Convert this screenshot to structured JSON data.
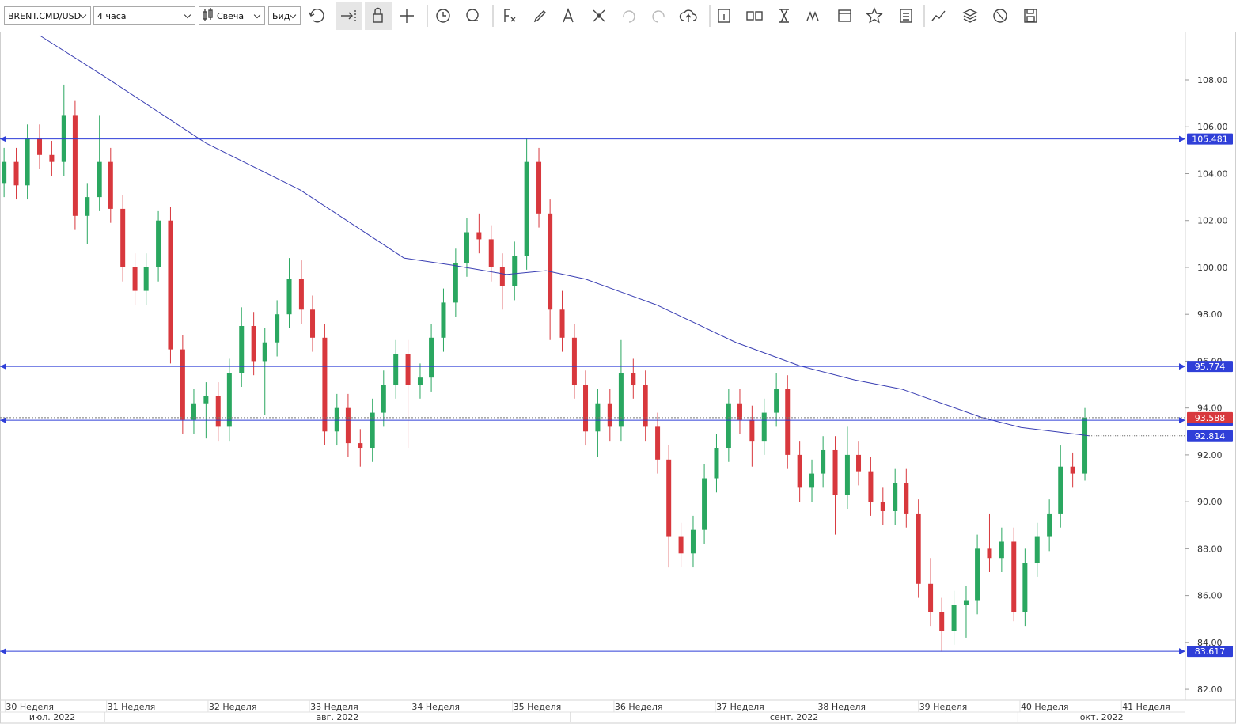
{
  "toolbar": {
    "symbol": "BRENT.CMD/USD",
    "timeframe": "4 часа",
    "chart_style": "Свеча",
    "price_side": "Бид"
  },
  "chart_data": {
    "type": "candlestick",
    "x": [
      29.99,
      30.11,
      30.22,
      30.34,
      30.46,
      30.58,
      30.69,
      30.81,
      30.93,
      31.04,
      31.16,
      31.28,
      31.39,
      31.51,
      31.63,
      31.75,
      31.86,
      31.98,
      32.1,
      32.21,
      32.33,
      32.45,
      32.56,
      32.68,
      32.8,
      32.92,
      33.03,
      33.15,
      33.27,
      33.38,
      33.5,
      33.62,
      33.73,
      33.85,
      33.97,
      34.09,
      34.2,
      34.32,
      34.44,
      34.55,
      34.67,
      34.79,
      34.9,
      35.02,
      35.14,
      35.26,
      35.37,
      35.49,
      35.61,
      35.72,
      35.84,
      35.96,
      36.07,
      36.19,
      36.31,
      36.43,
      36.54,
      36.66,
      36.78,
      36.89,
      37.01,
      37.13,
      37.24,
      37.36,
      37.48,
      37.6,
      37.71,
      37.83,
      37.95,
      38.06,
      38.18,
      38.3,
      38.41,
      38.53,
      38.65,
      38.77,
      38.88,
      39.0,
      39.12,
      39.23,
      39.35,
      39.47,
      39.58,
      39.7,
      39.82,
      39.94,
      40.05,
      40.17,
      40.29,
      40.4,
      40.52,
      40.64
    ],
    "open": [
      103.6,
      104.5,
      103.5,
      105.5,
      104.8,
      104.5,
      106.5,
      102.2,
      103,
      104.5,
      102.5,
      100,
      99,
      100,
      102,
      96.5,
      93.5,
      94.2,
      94.5,
      93.2,
      95.5,
      97.5,
      96,
      96.8,
      98,
      99.5,
      98.2,
      97,
      93,
      94,
      92.5,
      92.3,
      93.8,
      95,
      96.3,
      95,
      95.3,
      97,
      98.5,
      100.2,
      101.5,
      101.2,
      100,
      99.2,
      100.5,
      104.5,
      102.3,
      98.2,
      97,
      95,
      93,
      94.2,
      93.2,
      95.5,
      95,
      93.2,
      91.8,
      88.5,
      87.8,
      88.8,
      91,
      92.3,
      94.2,
      93.5,
      92.6,
      93.8,
      94.8,
      92,
      90.6,
      91.2,
      92.2,
      90.3,
      92,
      91.3,
      90,
      89.6,
      90.8,
      89.5,
      86.5,
      85.3,
      84.5,
      85.6,
      85.8,
      88,
      87.6,
      88.3,
      85.3,
      87.4,
      88.5,
      89.5,
      91.5,
      91.2
    ],
    "high": [
      105.1,
      105.1,
      106.1,
      106.1,
      105.4,
      107.8,
      107.1,
      103.6,
      106.5,
      105.1,
      103.1,
      100.6,
      100.6,
      102.4,
      102.6,
      97.1,
      94.8,
      95.1,
      95.1,
      96.1,
      98.3,
      98.1,
      97.4,
      98.6,
      100.4,
      100.3,
      98.8,
      97.6,
      94.6,
      94.6,
      93.1,
      94.4,
      95.6,
      96.9,
      96.9,
      95.9,
      97.6,
      99.1,
      100.8,
      102.1,
      102.3,
      101.8,
      100.6,
      101.1,
      105.5,
      105.1,
      102.9,
      99.0,
      97.6,
      95.6,
      94.8,
      94.8,
      96.9,
      96.1,
      95.6,
      93.8,
      92.4,
      89.1,
      89.4,
      91.6,
      92.9,
      94.8,
      94.8,
      94.1,
      94.4,
      95.5,
      95.4,
      92.6,
      91.8,
      92.8,
      92.8,
      93.2,
      92.6,
      91.9,
      90.6,
      91.4,
      91.4,
      90.1,
      87.6,
      85.9,
      86.2,
      86.4,
      88.6,
      89.5,
      88.9,
      88.9,
      88.0,
      89.1,
      90.1,
      92.4,
      92.1,
      94.0
    ],
    "low": [
      103.0,
      102.9,
      102.9,
      104.2,
      103.9,
      103.9,
      101.6,
      101.0,
      102.4,
      101.9,
      99.4,
      98.4,
      98.4,
      99.4,
      95.9,
      92.9,
      92.9,
      92.7,
      92.6,
      92.6,
      94.9,
      95.4,
      93.7,
      96.2,
      97.4,
      97.6,
      96.4,
      92.4,
      92.4,
      91.9,
      91.5,
      91.7,
      93.2,
      94.4,
      92.3,
      94.4,
      94.7,
      96.4,
      97.9,
      99.6,
      100.6,
      99.4,
      98.2,
      98.6,
      99.9,
      101.7,
      96.9,
      96.4,
      94.4,
      92.4,
      91.9,
      92.6,
      92.6,
      94.4,
      92.6,
      91.2,
      87.2,
      87.2,
      87.2,
      88.2,
      90.4,
      91.7,
      92.9,
      91.5,
      92.0,
      93.2,
      91.4,
      90.0,
      90.0,
      90.6,
      88.6,
      89.7,
      90.7,
      89.4,
      89.0,
      89.0,
      88.9,
      85.9,
      84.7,
      83.6,
      83.9,
      84.2,
      85.2,
      87.0,
      87.0,
      84.9,
      84.7,
      86.8,
      87.9,
      88.9,
      90.6,
      90.9
    ],
    "close": [
      104.5,
      103.5,
      105.5,
      104.8,
      104.5,
      106.5,
      102.2,
      103,
      104.5,
      102.5,
      100,
      99,
      100,
      102,
      96.5,
      93.5,
      94.2,
      94.5,
      93.2,
      95.5,
      97.5,
      96,
      96.8,
      98,
      99.5,
      98.2,
      97,
      93,
      94,
      92.5,
      92.3,
      93.8,
      95,
      96.3,
      95,
      95.3,
      97,
      98.5,
      100.2,
      101.5,
      101.2,
      100,
      99.2,
      100.5,
      104.5,
      102.3,
      98.2,
      97,
      95,
      93,
      94.2,
      93.2,
      95.5,
      95,
      93.2,
      91.8,
      88.5,
      87.8,
      88.8,
      91,
      92.3,
      94.2,
      93.5,
      92.6,
      93.8,
      94.8,
      92,
      90.6,
      91.2,
      92.2,
      90.3,
      92,
      91.3,
      90,
      89.6,
      90.8,
      89.5,
      86.5,
      85.3,
      84.5,
      85.6,
      85.8,
      88,
      87.6,
      88.3,
      85.3,
      87.4,
      88.5,
      89.5,
      91.5,
      91.2,
      93.588
    ],
    "up_color": "#2aa760",
    "down_color": "#d8383d",
    "xlim": [
      29.95,
      41.63
    ],
    "ylim": [
      81.53,
      110.06
    ],
    "yticks": [
      {
        "value": 82,
        "label": "82.00"
      },
      {
        "value": 84,
        "label": "84.00"
      },
      {
        "value": 86,
        "label": "86.00"
      },
      {
        "value": 88,
        "label": "88.00"
      },
      {
        "value": 90,
        "label": "90.00"
      },
      {
        "value": 92,
        "label": "92.00"
      },
      {
        "value": 94,
        "label": "94.00"
      },
      {
        "value": 96,
        "label": "96.00"
      },
      {
        "value": 98,
        "label": "98.00"
      },
      {
        "value": 100,
        "label": "100.00"
      },
      {
        "value": 102,
        "label": "102.00"
      },
      {
        "value": 104,
        "label": "104.00"
      },
      {
        "value": 106,
        "label": "106.00"
      },
      {
        "value": 108,
        "label": "108.00"
      }
    ],
    "xticks": [
      {
        "value": 30,
        "label": "30 Неделя"
      },
      {
        "value": 31,
        "label": "31 Неделя"
      },
      {
        "value": 32,
        "label": "32 Неделя"
      },
      {
        "value": 33,
        "label": "33 Неделя"
      },
      {
        "value": 34,
        "label": "34 Неделя"
      },
      {
        "value": 35,
        "label": "35 Неделя"
      },
      {
        "value": 36,
        "label": "36 Неделя"
      },
      {
        "value": 37,
        "label": "37 Неделя"
      },
      {
        "value": 38,
        "label": "38 Неделя"
      },
      {
        "value": 39,
        "label": "39 Неделя"
      },
      {
        "value": 40,
        "label": "40 Неделя"
      },
      {
        "value": 41,
        "label": "41 Неделя"
      }
    ],
    "months": [
      {
        "label": "июл. 2022",
        "start": 29.95,
        "end": 30.98
      },
      {
        "label": "авг. 2022",
        "start": 30.98,
        "end": 35.57
      },
      {
        "label": "сент. 2022",
        "start": 35.57,
        "end": 39.98
      },
      {
        "label": "окт. 2022",
        "start": 39.98,
        "end": 41.63
      }
    ],
    "moving_average": {
      "color": "#3a3fb3",
      "x": [
        30.34,
        30.96,
        31.98,
        32.91,
        33.93,
        34.4,
        34.94,
        35.33,
        35.72,
        36.42,
        37.2,
        37.83,
        38.37,
        38.84,
        39.62,
        40.01,
        40.68
      ],
      "values": [
        109.9,
        108.2,
        105.3,
        103.3,
        100.4,
        100.1,
        99.7,
        99.86,
        99.5,
        98.4,
        96.8,
        95.8,
        95.2,
        94.8,
        93.6,
        93.17,
        92.814
      ]
    },
    "horizontal_lines": {
      "color": "#2f3fd8",
      "values": [
        105.481,
        95.774,
        93.48,
        83.617
      ]
    }
  }
}
